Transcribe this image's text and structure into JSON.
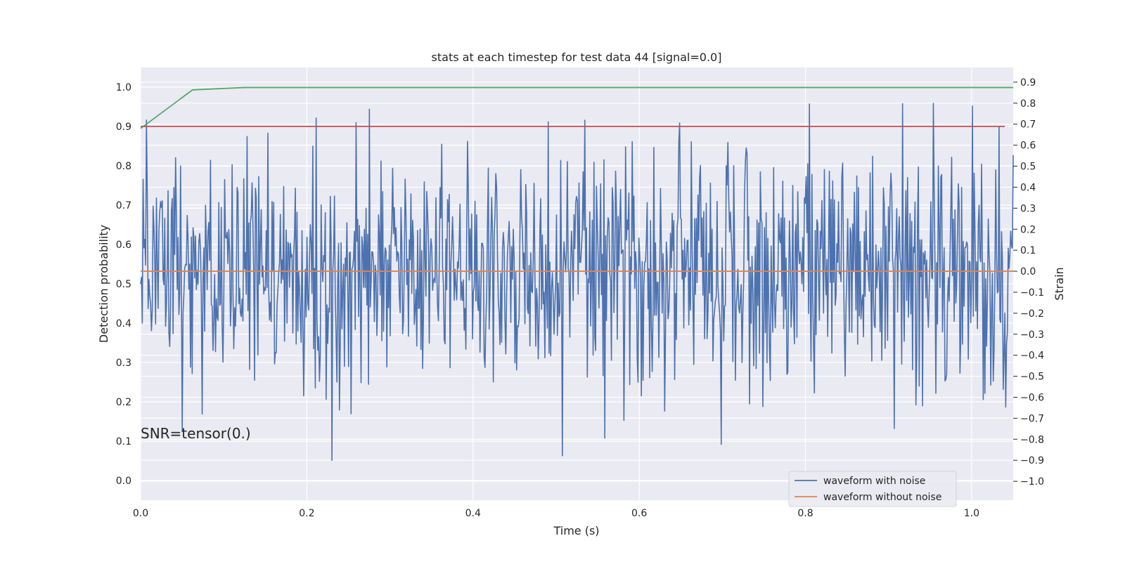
{
  "chart_data": {
    "type": "line",
    "title": "stats at each timestep for test data 44 [signal=0.0]",
    "xlabel": "Time (s)",
    "ylabel_left": "Detection probability",
    "ylabel_right": "Strain",
    "xlim": [
      0.0,
      1.05
    ],
    "ylim_left": [
      -0.05,
      1.05
    ],
    "ylim_right": [
      -1.09,
      0.97
    ],
    "x_ticks": [
      "0.0",
      "0.2",
      "0.4",
      "0.6",
      "0.8",
      "1.0"
    ],
    "y_ticks_left": [
      "0.0",
      "0.1",
      "0.2",
      "0.3",
      "0.4",
      "0.5",
      "0.6",
      "0.7",
      "0.8",
      "0.9",
      "1.0"
    ],
    "y_ticks_right": [
      "0.9",
      "0.8",
      "0.7",
      "0.6",
      "0.5",
      "0.4",
      "0.3",
      "0.2",
      "0.1",
      "0.0",
      "−0.1",
      "−0.2",
      "−0.3",
      "−0.4",
      "−0.5",
      "−0.6",
      "−0.7",
      "−0.8",
      "−0.9",
      "−1.0"
    ],
    "grid": true,
    "legend_position": "lower-right",
    "annotation": "SNR=tensor(0.)",
    "series": [
      {
        "name": "waveform with noise",
        "axis": "right",
        "color": "#4c72b0",
        "x_start": 0.0,
        "x_end": 1.05,
        "sample_count": 1050,
        "y_min": -0.92,
        "y_max": 0.81,
        "y_std": 0.3
      },
      {
        "name": "waveform without noise",
        "axis": "right",
        "color": "#dd8452",
        "x": [
          0.0,
          1.05
        ],
        "y": [
          0.0,
          0.0
        ]
      },
      {
        "axis": "left",
        "color": "#55a868",
        "x": [
          0.0,
          0.0625,
          0.125,
          0.1875,
          0.25,
          0.3125,
          0.375,
          0.4375,
          0.5,
          0.5625,
          0.625,
          0.6875,
          0.75,
          0.8125,
          0.875,
          0.9375,
          1.0,
          1.05
        ],
        "y": [
          0.895,
          0.993,
          0.999,
          0.999,
          0.999,
          0.999,
          0.999,
          0.999,
          0.999,
          0.999,
          0.999,
          0.999,
          0.999,
          0.999,
          0.999,
          0.999,
          0.999,
          0.999
        ]
      },
      {
        "axis": "left",
        "color": "#c44e52",
        "x": [
          0.0,
          1.04
        ],
        "y": [
          0.9,
          0.9
        ]
      }
    ]
  }
}
